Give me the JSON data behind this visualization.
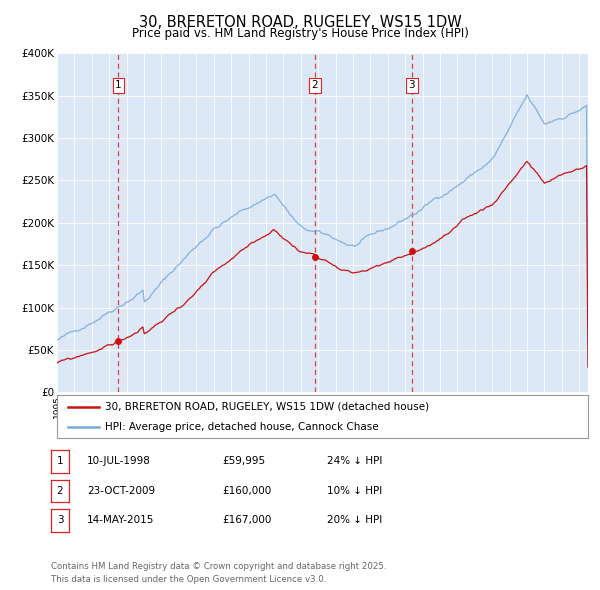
{
  "title": "30, BRERETON ROAD, RUGELEY, WS15 1DW",
  "subtitle": "Price paid vs. HM Land Registry's House Price Index (HPI)",
  "legend_entry1": "30, BRERETON ROAD, RUGELEY, WS15 1DW (detached house)",
  "legend_entry2": "HPI: Average price, detached house, Cannock Chase",
  "transactions": [
    {
      "num": 1,
      "date": "10-JUL-1998",
      "year": 1998.53,
      "price": 59995,
      "pct": "24% ↓ HPI"
    },
    {
      "num": 2,
      "date": "23-OCT-2009",
      "year": 2009.81,
      "price": 160000,
      "pct": "10% ↓ HPI"
    },
    {
      "num": 3,
      "date": "14-MAY-2015",
      "year": 2015.37,
      "price": 167000,
      "pct": "20% ↓ HPI"
    }
  ],
  "footer1": "Contains HM Land Registry data © Crown copyright and database right 2025.",
  "footer2": "This data is licensed under the Open Government Licence v3.0.",
  "xmin": 1995,
  "xmax": 2025.5,
  "ymin": 0,
  "ymax": 400000,
  "yticks": [
    0,
    50000,
    100000,
    150000,
    200000,
    250000,
    300000,
    350000,
    400000
  ],
  "ylabels": [
    "£0",
    "£50K",
    "£100K",
    "£150K",
    "£200K",
    "£250K",
    "£300K",
    "£350K",
    "£400K"
  ],
  "hpi_color": "#7aaadd",
  "price_color": "#cc1111",
  "vline_color": "#dd2222",
  "plot_bg": "#dce8f5",
  "grid_color": "#c0cfe0"
}
